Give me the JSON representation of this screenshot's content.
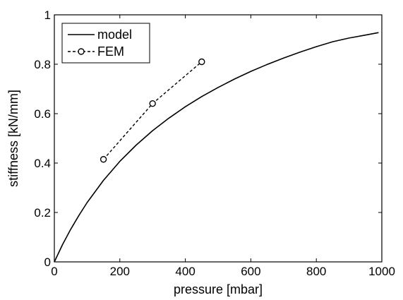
{
  "chart_data": {
    "type": "line",
    "title": "",
    "xlabel": "pressure [mbar]",
    "ylabel": "stiffness [kN/mm]",
    "xlim": [
      0,
      1000
    ],
    "ylim": [
      0,
      1
    ],
    "xticks": [
      0,
      200,
      400,
      600,
      800,
      1000
    ],
    "yticks": [
      0,
      0.2,
      0.4,
      0.6,
      0.8,
      1
    ],
    "xtick_labels": [
      "0",
      "200",
      "400",
      "600",
      "800",
      "1000"
    ],
    "ytick_labels": [
      "0",
      "0.2",
      "0.4",
      "0.6",
      "0.8",
      "1"
    ],
    "grid": false,
    "legend_position": "top-left",
    "series": [
      {
        "name": "model",
        "style": "solid",
        "color": "#000000",
        "x": [
          0,
          25,
          50,
          75,
          100,
          150,
          200,
          250,
          300,
          350,
          400,
          450,
          500,
          550,
          600,
          650,
          700,
          750,
          800,
          850,
          900,
          950,
          990
        ],
        "y": [
          0,
          0.07,
          0.132,
          0.188,
          0.24,
          0.33,
          0.407,
          0.473,
          0.531,
          0.582,
          0.628,
          0.669,
          0.706,
          0.74,
          0.771,
          0.799,
          0.825,
          0.849,
          0.871,
          0.891,
          0.906,
          0.918,
          0.928
        ]
      },
      {
        "name": "FEM",
        "style": "dashed",
        "marker": "circle",
        "color": "#000000",
        "x": [
          150,
          300,
          450
        ],
        "y": [
          0.415,
          0.641,
          0.81
        ]
      }
    ]
  }
}
